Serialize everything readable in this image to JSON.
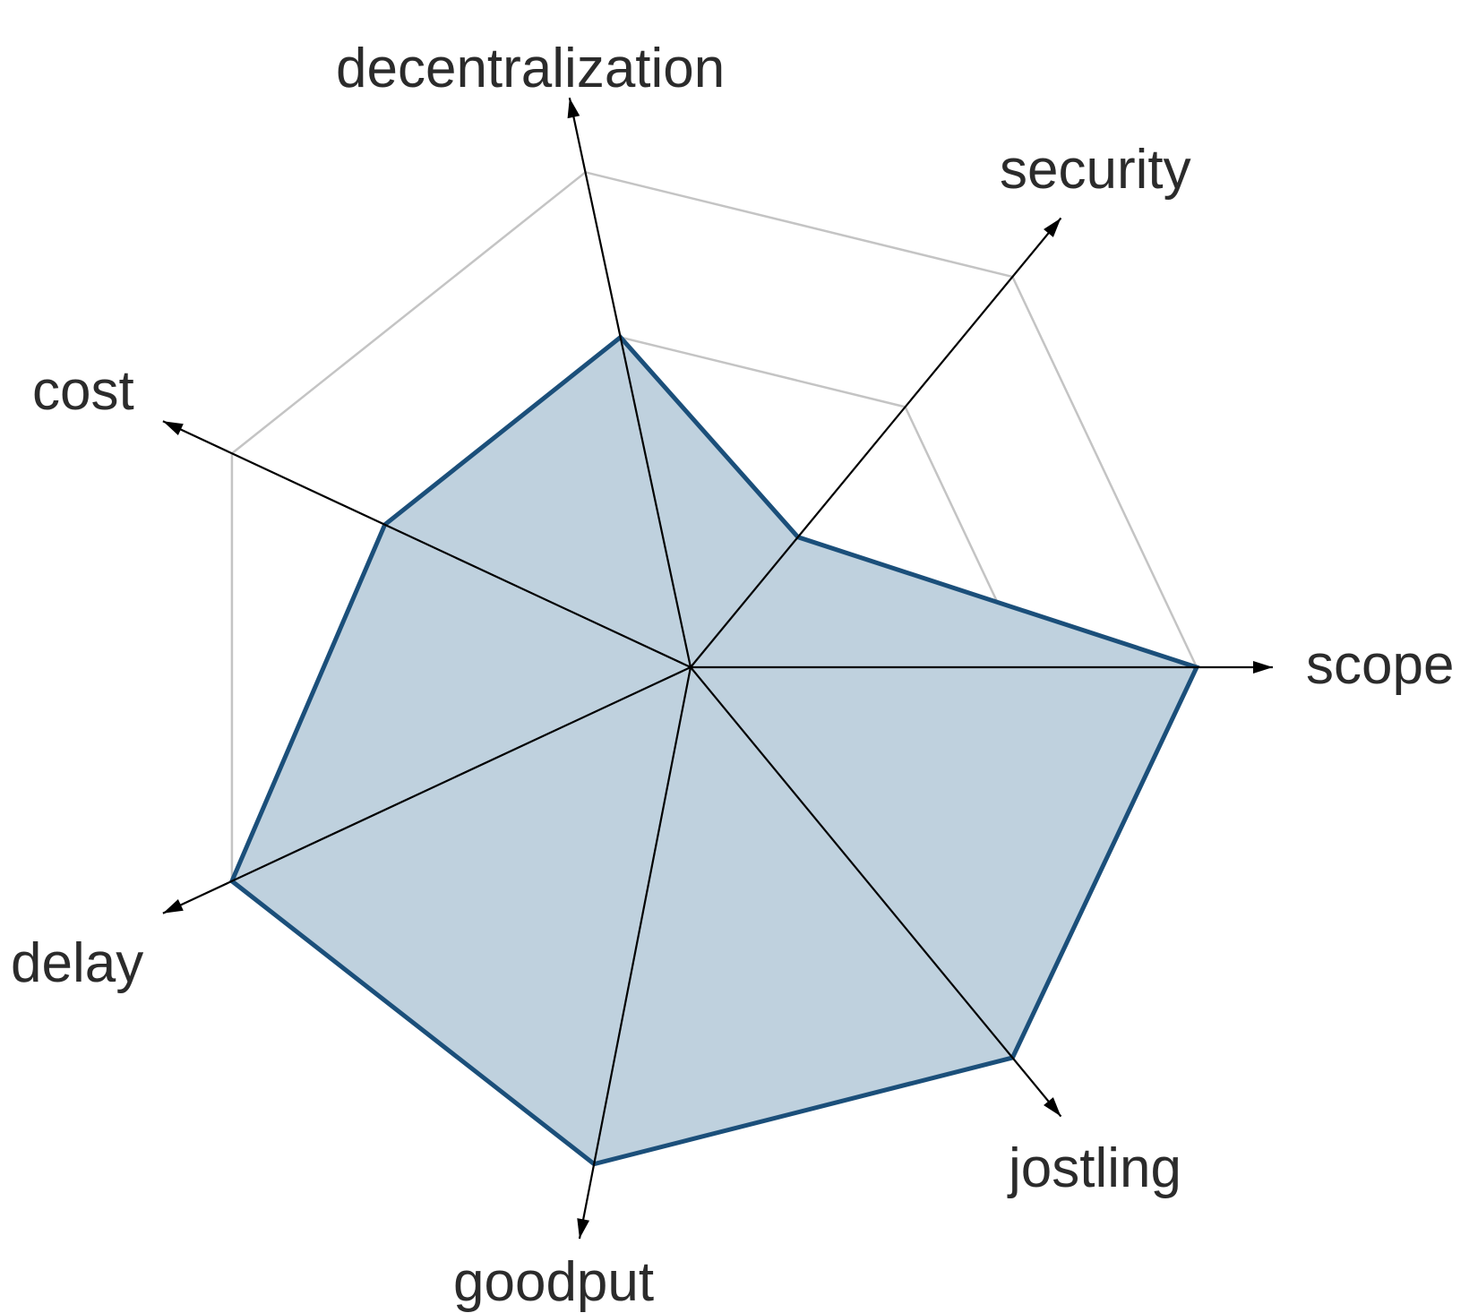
{
  "chart_data": {
    "type": "radar",
    "title": "",
    "axes": [
      "scope",
      "security",
      "decentralization",
      "cost",
      "delay",
      "goodput",
      "jostling"
    ],
    "levels": 3,
    "max": 3,
    "series": [
      {
        "values": [
          3,
          1,
          2,
          2,
          3,
          3,
          3
        ]
      }
    ],
    "colors": {
      "fill": "#bfd1de",
      "stroke": "#1b4f7a",
      "grid": "#c4c4c4",
      "axis": "#000000",
      "text": "#2b2b2b"
    }
  }
}
